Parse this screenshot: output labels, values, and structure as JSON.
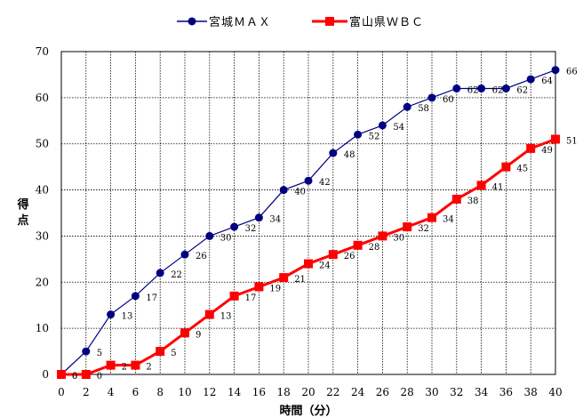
{
  "chart_data": {
    "type": "line",
    "title": "",
    "xlabel": "時間（分）",
    "ylabel": "得点",
    "x": [
      0,
      2,
      4,
      6,
      8,
      10,
      12,
      14,
      16,
      18,
      20,
      22,
      24,
      26,
      28,
      30,
      32,
      34,
      36,
      38,
      40
    ],
    "xlim": [
      0,
      40
    ],
    "ylim": [
      0,
      70
    ],
    "xticks": [
      "0",
      "2",
      "4",
      "6",
      "8",
      "10",
      "12",
      "14",
      "16",
      "18",
      "20",
      "22",
      "24",
      "26",
      "28",
      "30",
      "32",
      "34",
      "36",
      "38",
      "40"
    ],
    "yticks": [
      "0",
      "10",
      "20",
      "30",
      "40",
      "50",
      "60",
      "70"
    ],
    "grid": true,
    "legend_position": "top",
    "series": [
      {
        "name": "宮城ＭＡＸ",
        "color": "#000080",
        "marker": "circle",
        "values": [
          0,
          5,
          13,
          17,
          22,
          26,
          30,
          32,
          34,
          40,
          42,
          48,
          52,
          54,
          58,
          60,
          62,
          62,
          62,
          64,
          66
        ],
        "labels": [
          "0",
          "5",
          "13",
          "17",
          "22",
          "26",
          "30",
          "32",
          "34",
          "40",
          "42",
          "48",
          "52",
          "54",
          "58",
          "60",
          "62",
          "62",
          "62",
          "64",
          "66"
        ]
      },
      {
        "name": "富山県ＷＢＣ",
        "color": "#ff0000",
        "marker": "square",
        "values": [
          0,
          0,
          2,
          2,
          5,
          9,
          13,
          17,
          19,
          21,
          24,
          26,
          28,
          30,
          32,
          34,
          38,
          41,
          45,
          49,
          51
        ],
        "labels": [
          "0",
          "0",
          "2",
          "2",
          "5",
          "9",
          "13",
          "17",
          "19",
          "21",
          "24",
          "26",
          "28",
          "30",
          "32",
          "34",
          "38",
          "41",
          "45",
          "49",
          "51"
        ]
      }
    ]
  }
}
